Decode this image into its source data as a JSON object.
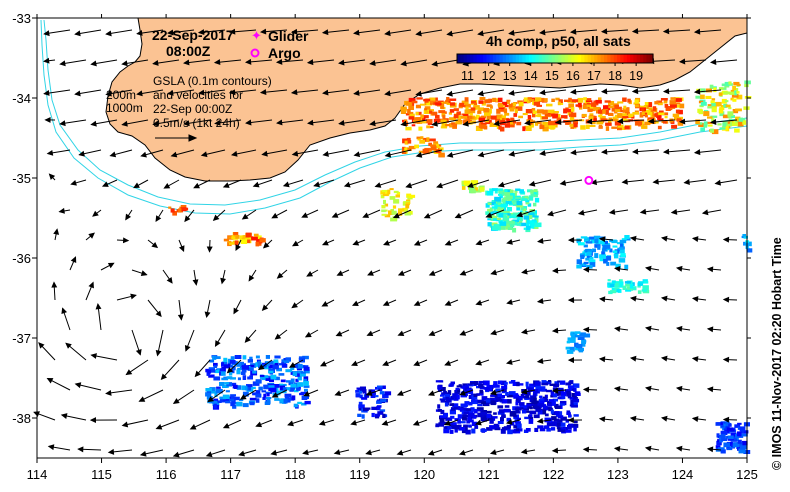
{
  "map": {
    "date_line": "22-Sep-2017",
    "time_line": "08:00Z",
    "legend_glider": "Glider",
    "legend_argo": "Argo",
    "gsla_lines": [
      "GSLA (0.1m contours)",
      "and velocities for",
      "22-Sep 00:00Z",
      "0.5m/s (1kt 24h)"
    ],
    "depth_200": "200m",
    "depth_1000": "1000m",
    "colorbar_title": "4h comp, p50, all sats",
    "colorbar_ticks": [
      "11",
      "12",
      "13",
      "14",
      "15",
      "16",
      "17",
      "18",
      "19"
    ],
    "credit": "© IMOS 11-Nov-2017 02:20 Hobart Time",
    "x_ticks": [
      "114",
      "115",
      "116",
      "117",
      "118",
      "119",
      "120",
      "121",
      "122",
      "123",
      "124",
      "125"
    ],
    "y_ticks": [
      "-33",
      "-34",
      "-35",
      "-36",
      "-37",
      "-38"
    ],
    "colors": {
      "land": "#fbc393",
      "isobath": "#31d4e6",
      "glider": "#ff00ff",
      "argo": "#ff00ff"
    },
    "lon_range": [
      114,
      125
    ],
    "lat_range": [
      -38.5,
      -33
    ],
    "argo_position": {
      "lon": 122.55,
      "lat": -35.03
    }
  }
}
